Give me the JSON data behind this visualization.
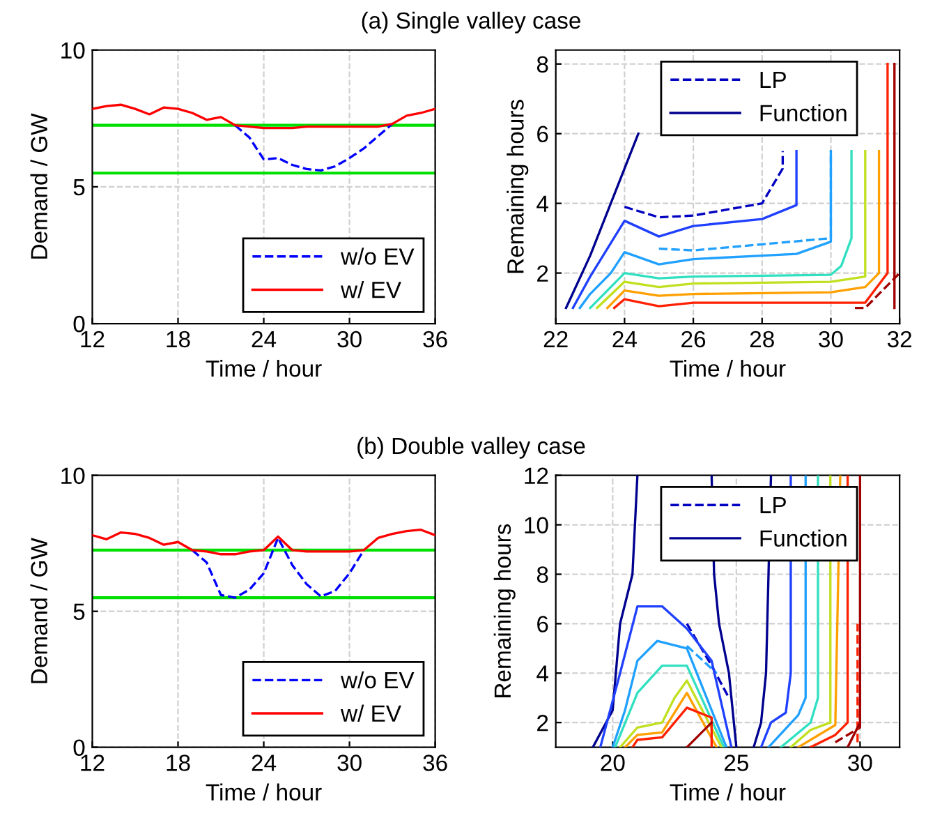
{
  "chart_data": [
    {
      "type": "line",
      "title": "(a) Single valley case",
      "xlabel": "Time / hour",
      "ylabel": "Demand / GW",
      "xlim": [
        12,
        36
      ],
      "xticks": [
        12,
        18,
        24,
        30,
        36
      ],
      "ylim": [
        0,
        10
      ],
      "yticks": [
        0,
        5,
        10
      ],
      "grid": true,
      "legend": "bottom right",
      "series": [
        {
          "name": "w/o EV",
          "color": "#0000ff",
          "line_style": "dashed",
          "x": [
            22,
            23,
            24,
            25,
            26,
            27,
            28,
            29,
            30,
            31,
            32,
            33
          ],
          "values": [
            7.25,
            6.8,
            6.0,
            6.05,
            5.8,
            5.65,
            5.6,
            5.75,
            6.05,
            6.4,
            6.85,
            7.3
          ]
        },
        {
          "name": "w/ EV",
          "color": "#ff0000",
          "line_style": "solid",
          "x": [
            12,
            13,
            14,
            15,
            16,
            17,
            18,
            19,
            20,
            21,
            22,
            23,
            24,
            25,
            26,
            27,
            28,
            29,
            30,
            31,
            32,
            33,
            34,
            35,
            36
          ],
          "values": [
            7.85,
            7.95,
            8.0,
            7.85,
            7.65,
            7.9,
            7.85,
            7.7,
            7.45,
            7.55,
            7.25,
            7.2,
            7.15,
            7.15,
            7.15,
            7.2,
            7.2,
            7.2,
            7.2,
            7.2,
            7.2,
            7.3,
            7.6,
            7.7,
            7.85
          ]
        }
      ],
      "ref_lines": [
        {
          "axis": "y",
          "value": 7.25,
          "color": "#00e000"
        },
        {
          "axis": "y",
          "value": 5.5,
          "color": "#00e000"
        }
      ]
    },
    {
      "type": "line",
      "xlabel": "Time / hour",
      "ylabel": "Remaining hours",
      "xlim": [
        22,
        32
      ],
      "xticks": [
        22,
        24,
        26,
        28,
        30,
        32
      ],
      "ylim": [
        0.55,
        8.4
      ],
      "yticks": [
        2,
        4,
        6,
        8
      ],
      "grid": true,
      "legend": "top right",
      "series": [
        {
          "name": "LP",
          "color": "#0000c0",
          "line_style": "dashed",
          "x": [
            24,
            25,
            26,
            28,
            28.6,
            28.6
          ],
          "values": [
            3.9,
            3.6,
            3.65,
            4,
            5,
            5.5
          ]
        },
        {
          "color": "#20a0ff",
          "line_style": "dashed",
          "x": [
            25,
            26,
            30,
            30
          ],
          "values": [
            2.7,
            2.65,
            3,
            5.5
          ]
        },
        {
          "color": "#a00000",
          "line_style": "dashed",
          "x": [
            30.7,
            31,
            32
          ],
          "values": [
            1,
            1,
            2
          ]
        },
        {
          "name": "Function",
          "color": "#00008f",
          "line_style": "solid",
          "x": [
            22.3,
            23,
            24,
            24.4
          ],
          "values": [
            1,
            2.5,
            5,
            6
          ]
        },
        {
          "color": "#2040ff",
          "line_style": "solid",
          "x": [
            22.5,
            23,
            24,
            25,
            26,
            28,
            29,
            29,
            29
          ],
          "values": [
            1,
            1.9,
            3.5,
            3.05,
            3.35,
            3.55,
            3.95,
            5.5,
            5.5
          ]
        },
        {
          "color": "#20a0ff",
          "line_style": "solid",
          "x": [
            22.7,
            23,
            23.6,
            24,
            25,
            26,
            28,
            29,
            30,
            30
          ],
          "values": [
            1,
            1.4,
            2,
            2.6,
            2.25,
            2.4,
            2.5,
            2.55,
            2.9,
            5.5
          ]
        },
        {
          "color": "#30e0c0",
          "line_style": "solid",
          "x": [
            23,
            24,
            25,
            26,
            30,
            30.3,
            30.6,
            30.6
          ],
          "values": [
            1,
            2,
            1.85,
            1.9,
            1.95,
            2.2,
            3,
            5.5
          ]
        },
        {
          "color": "#c0e020",
          "line_style": "solid",
          "x": [
            23.2,
            24,
            25,
            26,
            30,
            31,
            31
          ],
          "values": [
            1,
            1.75,
            1.6,
            1.7,
            1.75,
            1.9,
            5.5
          ]
        },
        {
          "color": "#ffa000",
          "line_style": "solid",
          "x": [
            23.5,
            24,
            25,
            26,
            30,
            31,
            31.4,
            31.4
          ],
          "values": [
            1,
            1.5,
            1.35,
            1.4,
            1.45,
            1.6,
            2,
            5.5
          ]
        },
        {
          "color": "#ff2000",
          "line_style": "solid",
          "x": [
            23.7,
            24,
            25,
            26,
            31,
            31.65,
            31.65
          ],
          "values": [
            1,
            1.25,
            1.05,
            1.15,
            1.15,
            2,
            8
          ]
        },
        {
          "color": "#a00000",
          "line_style": "solid",
          "x": [
            31.85,
            31.85
          ],
          "values": [
            1,
            8
          ]
        }
      ]
    },
    {
      "type": "line",
      "title": "(b) Double valley case",
      "xlabel": "Time / hour",
      "ylabel": "Demand / GW",
      "xlim": [
        12,
        36
      ],
      "xticks": [
        12,
        18,
        24,
        30,
        36
      ],
      "ylim": [
        0,
        10
      ],
      "yticks": [
        0,
        5,
        10
      ],
      "grid": true,
      "legend": "bottom right",
      "series": [
        {
          "name": "w/o EV",
          "color": "#0000ff",
          "line_style": "dashed",
          "x": [
            19,
            20,
            21,
            22,
            23,
            24,
            25,
            26,
            27,
            28,
            29,
            30,
            31
          ],
          "values": [
            7.25,
            6.8,
            5.6,
            5.5,
            5.8,
            6.4,
            7.7,
            6.7,
            6.0,
            5.55,
            5.75,
            6.4,
            7.25
          ]
        },
        {
          "name": "w/ EV",
          "color": "#ff0000",
          "line_style": "solid",
          "x": [
            12,
            13,
            14,
            15,
            16,
            17,
            18,
            19,
            20,
            21,
            22,
            23,
            24,
            25,
            26,
            27,
            28,
            29,
            30,
            31,
            32,
            33,
            34,
            35,
            36
          ],
          "values": [
            7.8,
            7.65,
            7.9,
            7.85,
            7.7,
            7.45,
            7.55,
            7.25,
            7.2,
            7.1,
            7.1,
            7.2,
            7.25,
            7.75,
            7.25,
            7.2,
            7.2,
            7.2,
            7.2,
            7.25,
            7.7,
            7.85,
            7.95,
            8.0,
            7.8
          ]
        }
      ],
      "ref_lines": [
        {
          "axis": "y",
          "value": 7.25,
          "color": "#00e000"
        },
        {
          "axis": "y",
          "value": 5.5,
          "color": "#00e000"
        }
      ]
    },
    {
      "type": "line",
      "xlabel": "Time / hour",
      "ylabel": "Remaining hours",
      "xlim": [
        17.7,
        31.6
      ],
      "xticks": [
        20,
        25,
        30
      ],
      "ylim": [
        1,
        12
      ],
      "yticks": [
        2,
        4,
        6,
        8,
        10,
        12
      ],
      "grid": true,
      "legend": "top right",
      "series": [
        {
          "name": "LP",
          "color": "#0000c0",
          "line_style": "dashed",
          "x": [
            23,
            24,
            24.7
          ],
          "values": [
            6,
            4.3,
            3
          ]
        },
        {
          "color": "#20a0ff",
          "line_style": "dashed",
          "x": [
            23,
            24.2
          ],
          "values": [
            5.1,
            4
          ]
        },
        {
          "color": "#a00000",
          "line_style": "dashed",
          "x": [
            29,
            30,
            30
          ],
          "values": [
            1.2,
            1.8,
            3.3
          ]
        },
        {
          "color": "#ff2000",
          "line_style": "dashed",
          "x": [
            29.9,
            29.9
          ],
          "values": [
            1.2,
            6
          ]
        },
        {
          "name": "Function",
          "color": "#00008f",
          "line_style": "solid",
          "x": [
            19.2,
            20,
            20.3,
            20.8,
            21
          ],
          "values": [
            1,
            2.5,
            6,
            8,
            12
          ]
        },
        {
          "color": "#00008f",
          "line_style": "solid",
          "x": [
            24,
            24.1,
            24.3,
            24.7,
            25
          ],
          "values": [
            12,
            8,
            6,
            4,
            1
          ]
        },
        {
          "color": "#00008f",
          "line_style": "solid",
          "x": [
            25.7,
            26,
            26.2,
            26.3,
            26.4
          ],
          "values": [
            1,
            2,
            4,
            8,
            12
          ]
        },
        {
          "color": "#2040ff",
          "line_style": "solid",
          "x": [
            19.5,
            20.3,
            21,
            22,
            23,
            24,
            24.8
          ],
          "values": [
            1,
            4,
            6.7,
            6.7,
            5.8,
            4.5,
            1
          ]
        },
        {
          "color": "#2040ff",
          "line_style": "solid",
          "x": [
            26,
            26.4,
            27,
            27.2,
            27.2
          ],
          "values": [
            1,
            2,
            2.4,
            4,
            12
          ]
        },
        {
          "color": "#20a0ff",
          "line_style": "solid",
          "x": [
            20,
            20.5,
            21,
            21.8,
            23,
            24.6
          ],
          "values": [
            1,
            2.5,
            4.5,
            5.3,
            5,
            1
          ]
        },
        {
          "color": "#20a0ff",
          "line_style": "solid",
          "x": [
            26.3,
            27.5,
            27.8,
            27.8
          ],
          "values": [
            1,
            2.3,
            3,
            12
          ]
        },
        {
          "color": "#30e0c0",
          "line_style": "solid",
          "x": [
            20.1,
            21,
            22,
            23,
            24.5
          ],
          "values": [
            1,
            3.2,
            4.3,
            4.3,
            1
          ]
        },
        {
          "color": "#30e0c0",
          "line_style": "solid",
          "x": [
            26.8,
            28,
            28.3,
            28.3
          ],
          "values": [
            1,
            2,
            3,
            12
          ]
        },
        {
          "color": "#c0e020",
          "line_style": "solid",
          "x": [
            20.3,
            21,
            22,
            22.5,
            23,
            24.4
          ],
          "values": [
            1,
            1.8,
            2,
            3,
            3.7,
            1
          ]
        },
        {
          "color": "#c0e020",
          "line_style": "solid",
          "x": [
            27.2,
            28,
            28.8,
            28.8
          ],
          "values": [
            1,
            1.7,
            2,
            12
          ]
        },
        {
          "color": "#ffa000",
          "line_style": "solid",
          "x": [
            20.5,
            21,
            22,
            23,
            24.2
          ],
          "values": [
            1,
            1.5,
            1.6,
            3.2,
            1
          ]
        },
        {
          "color": "#ffa000",
          "line_style": "solid",
          "x": [
            27.5,
            29,
            29.2
          ],
          "values": [
            1,
            1.9,
            12
          ]
        },
        {
          "color": "#ff2000",
          "line_style": "solid",
          "x": [
            20.8,
            21,
            22,
            23,
            24,
            24
          ],
          "values": [
            1,
            1.3,
            1.4,
            2.6,
            2.2,
            1
          ]
        },
        {
          "color": "#ff2000",
          "line_style": "solid",
          "x": [
            28,
            29,
            29.5,
            29.5
          ],
          "values": [
            1,
            1.5,
            2,
            12
          ]
        },
        {
          "color": "#a00000",
          "line_style": "solid",
          "x": [
            23,
            24
          ],
          "values": [
            1,
            2
          ]
        },
        {
          "color": "#a00000",
          "line_style": "solid",
          "x": [
            29.5,
            30,
            30
          ],
          "values": [
            1,
            2,
            12
          ]
        }
      ]
    }
  ]
}
